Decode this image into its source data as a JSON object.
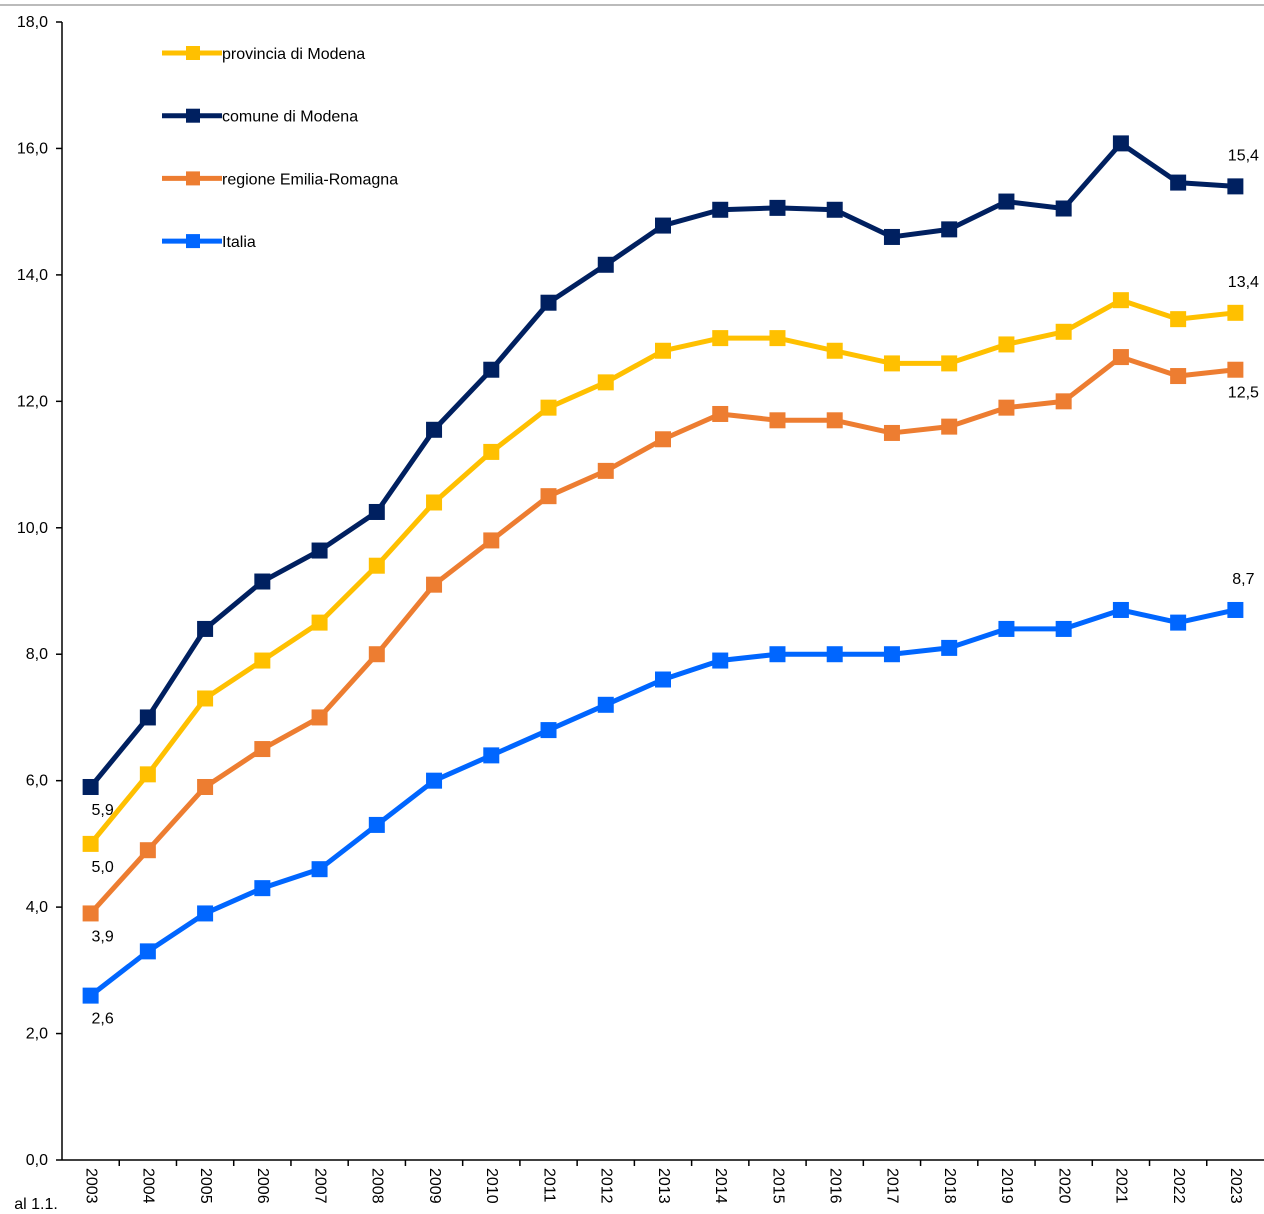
{
  "chart_data": {
    "type": "line",
    "x_label": "al 1.1.",
    "categories": [
      "2003",
      "2004",
      "2005",
      "2006",
      "2007",
      "2008",
      "2009",
      "2010",
      "2011",
      "2012",
      "2013",
      "2014",
      "2015",
      "2016",
      "2017",
      "2018",
      "2019",
      "2020",
      "2021",
      "2022",
      "2023"
    ],
    "ylim": [
      0,
      18
    ],
    "yticks": [
      {
        "value": 0,
        "label": "0,0"
      },
      {
        "value": 2,
        "label": "2,0"
      },
      {
        "value": 4,
        "label": "4,0"
      },
      {
        "value": 6,
        "label": "6,0"
      },
      {
        "value": 8,
        "label": "8,0"
      },
      {
        "value": 10,
        "label": "10,0"
      },
      {
        "value": 12,
        "label": "12,0"
      },
      {
        "value": 14,
        "label": "14,0"
      },
      {
        "value": 16,
        "label": "16,0"
      },
      {
        "value": 18,
        "label": "18,0"
      }
    ],
    "legend": "top-left",
    "series": [
      {
        "name": "provincia di Modena",
        "color": "#FFC000",
        "values": [
          5.0,
          6.1,
          7.3,
          7.9,
          8.5,
          9.4,
          10.4,
          11.2,
          11.9,
          12.3,
          12.8,
          13.0,
          13.0,
          12.8,
          12.6,
          12.6,
          12.9,
          13.1,
          13.6,
          13.3,
          13.4
        ],
        "value_labels": [
          "5,0",
          null,
          null,
          null,
          null,
          null,
          null,
          null,
          null,
          null,
          null,
          null,
          null,
          null,
          null,
          null,
          null,
          null,
          null,
          null,
          "13,4"
        ]
      },
      {
        "name": "comune di Modena",
        "color": "#002060",
        "values": [
          5.9,
          7.0,
          8.4,
          9.15,
          9.64,
          10.25,
          11.55,
          12.5,
          13.56,
          14.16,
          14.78,
          15.03,
          15.06,
          15.03,
          14.6,
          14.72,
          15.16,
          15.05,
          16.08,
          15.46,
          15.4
        ],
        "value_labels": [
          "5,9",
          null,
          null,
          null,
          null,
          null,
          null,
          null,
          null,
          null,
          null,
          null,
          null,
          null,
          null,
          null,
          null,
          null,
          null,
          null,
          "15,4"
        ]
      },
      {
        "name": "regione Emilia-Romagna",
        "color": "#ED7D31",
        "values": [
          3.9,
          4.9,
          5.9,
          6.5,
          7.0,
          8.0,
          9.1,
          9.8,
          10.5,
          10.9,
          11.4,
          11.8,
          11.7,
          11.7,
          11.5,
          11.6,
          11.9,
          12.0,
          12.7,
          12.4,
          12.5
        ],
        "value_labels": [
          "3,9",
          null,
          null,
          null,
          null,
          null,
          null,
          null,
          null,
          null,
          null,
          null,
          null,
          null,
          null,
          null,
          null,
          null,
          null,
          null,
          "12,5"
        ]
      },
      {
        "name": "Italia",
        "color": "#0066FF",
        "values": [
          2.6,
          3.3,
          3.9,
          4.3,
          4.6,
          5.3,
          6.0,
          6.4,
          6.8,
          7.2,
          7.6,
          7.9,
          8.0,
          8.0,
          8.0,
          8.1,
          8.4,
          8.4,
          8.7,
          8.5,
          8.7
        ],
        "value_labels": [
          "2,6",
          null,
          null,
          null,
          null,
          null,
          null,
          null,
          null,
          null,
          null,
          null,
          null,
          null,
          null,
          null,
          null,
          null,
          null,
          null,
          "8,7"
        ]
      }
    ]
  }
}
